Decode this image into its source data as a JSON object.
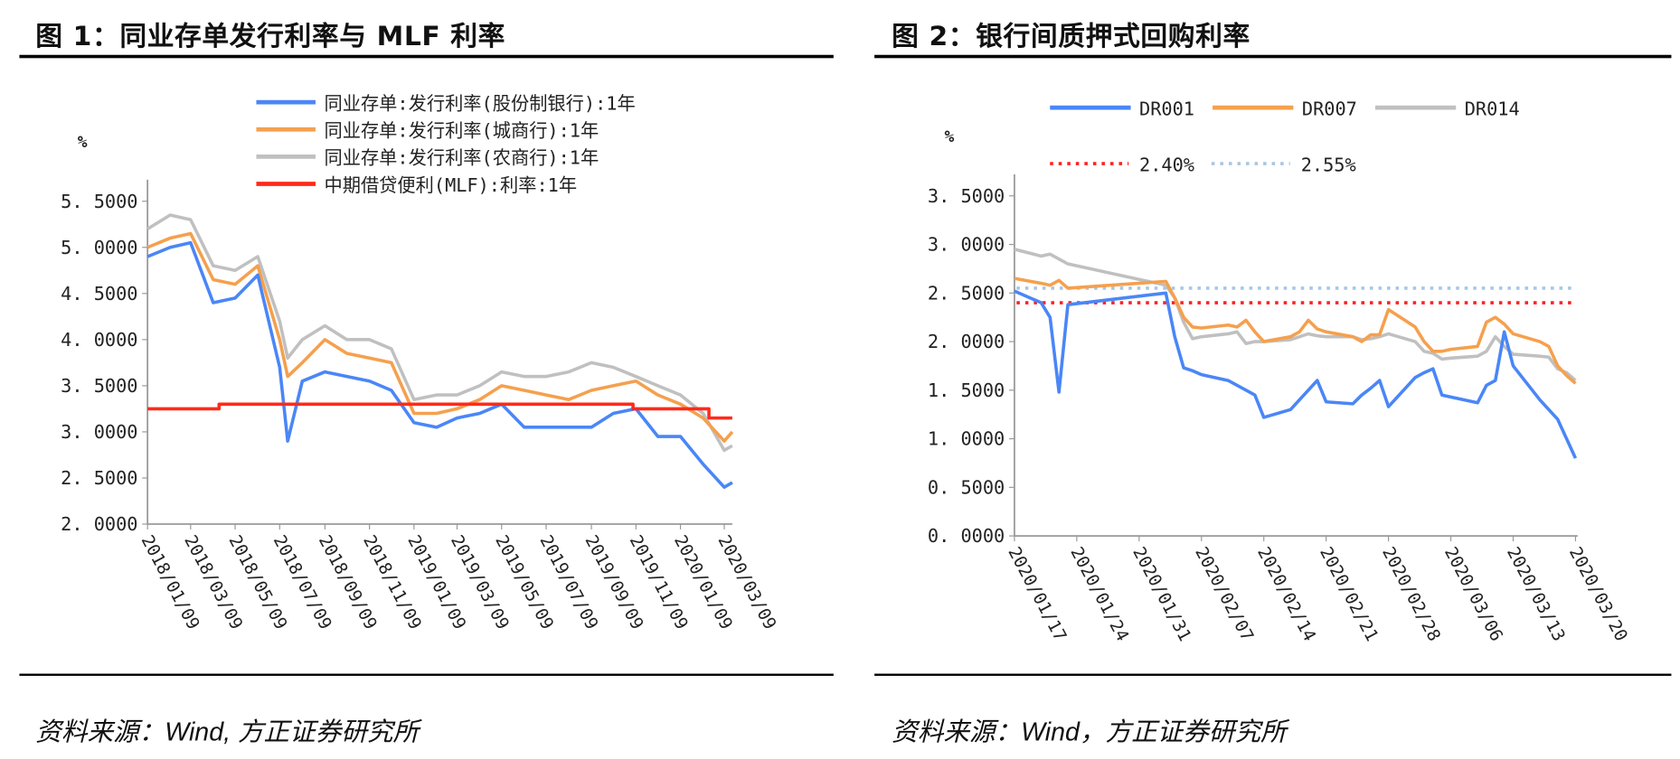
{
  "panels": {
    "left": {
      "title": "图 1：同业存单发行利率与 MLF 利率",
      "source": "资料来源：Wind, 方正证券研究所"
    },
    "right": {
      "title": "图 2：银行间质押式回购利率",
      "source": "资料来源：Wind，方正证券研究所"
    }
  },
  "chart_data": [
    {
      "type": "line",
      "ylabel": "%",
      "ylim": [
        2.0,
        5.5
      ],
      "yticks": [
        "5.5000",
        "5.0000",
        "4.5000",
        "4.0000",
        "3.5000",
        "3.0000",
        "2.5000",
        "2.0000"
      ],
      "xticks": [
        "2018/01/09",
        "2018/03/09",
        "2018/05/09",
        "2018/07/09",
        "2018/09/09",
        "2018/11/09",
        "2019/01/09",
        "2019/03/09",
        "2019/05/09",
        "2019/07/09",
        "2019/09/09",
        "2019/11/09",
        "2020/01/09",
        "2020/03/09"
      ],
      "grid": false,
      "legend": "top",
      "x": [
        "2018-01-09",
        "2018-02-09",
        "2018-03-09",
        "2018-04-09",
        "2018-05-09",
        "2018-06-09",
        "2018-07-09",
        "2018-07-20",
        "2018-08-09",
        "2018-09-09",
        "2018-10-09",
        "2018-11-09",
        "2018-12-09",
        "2019-01-09",
        "2019-02-09",
        "2019-03-09",
        "2019-04-09",
        "2019-05-09",
        "2019-06-09",
        "2019-07-09",
        "2019-08-09",
        "2019-09-09",
        "2019-10-09",
        "2019-11-09",
        "2019-12-09",
        "2020-01-09",
        "2020-02-09",
        "2020-03-09",
        "2020-03-20"
      ],
      "series": [
        {
          "name": "同业存单:发行利率(农商行):1年",
          "color": "#c0c0c0",
          "values": [
            5.2,
            5.35,
            5.3,
            4.8,
            4.75,
            4.9,
            4.2,
            3.8,
            4.0,
            4.15,
            4.0,
            4.0,
            3.9,
            3.35,
            3.4,
            3.4,
            3.5,
            3.65,
            3.6,
            3.6,
            3.65,
            3.75,
            3.7,
            3.6,
            3.5,
            3.4,
            3.2,
            2.8,
            2.85
          ]
        },
        {
          "name": "同业存单:发行利率(城商行):1年",
          "color": "#f5a04e",
          "values": [
            5.0,
            5.1,
            5.15,
            4.65,
            4.6,
            4.8,
            4.0,
            3.6,
            3.75,
            4.0,
            3.85,
            3.8,
            3.75,
            3.2,
            3.2,
            3.25,
            3.35,
            3.5,
            3.45,
            3.4,
            3.35,
            3.45,
            3.5,
            3.55,
            3.4,
            3.3,
            3.15,
            2.9,
            3.0
          ]
        },
        {
          "name": "同业存单:发行利率(股份制银行):1年",
          "color": "#4a86f7",
          "values": [
            4.9,
            5.0,
            5.05,
            4.4,
            4.45,
            4.7,
            3.7,
            2.9,
            3.55,
            3.65,
            3.6,
            3.55,
            3.45,
            3.1,
            3.05,
            3.15,
            3.2,
            3.3,
            3.05,
            3.05,
            3.05,
            3.05,
            3.2,
            3.25,
            2.95,
            2.95,
            2.65,
            2.4,
            2.45
          ]
        },
        {
          "name": "中期借贷便利(MLF):利率:1年",
          "color": "#ff2a1a",
          "step": true,
          "points": [
            [
              "2018-01-09",
              3.25
            ],
            [
              "2018-04-17",
              3.3
            ],
            [
              "2019-11-05",
              3.25
            ],
            [
              "2020-02-17",
              3.15
            ],
            [
              "2020-03-20",
              3.15
            ]
          ]
        }
      ],
      "legend_order": [
        2,
        1,
        0,
        3
      ]
    },
    {
      "type": "line",
      "ylabel": "%",
      "ylim": [
        0,
        3.5
      ],
      "yticks": [
        "3.5000",
        "3.0000",
        "2.5000",
        "2.0000",
        "1.5000",
        "1.0000",
        "0.5000",
        "0.0000"
      ],
      "xticks": [
        "2020/01/17",
        "2020/01/24",
        "2020/01/31",
        "2020/02/07",
        "2020/02/14",
        "2020/02/21",
        "2020/02/28",
        "2020/03/06",
        "2020/03/13",
        "2020/03/20"
      ],
      "grid": false,
      "legend": "top",
      "x": [
        "2020-01-17",
        "2020-01-20",
        "2020-01-21",
        "2020-01-22",
        "2020-01-23",
        "2020-02-03",
        "2020-02-04",
        "2020-02-05",
        "2020-02-06",
        "2020-02-07",
        "2020-02-10",
        "2020-02-11",
        "2020-02-12",
        "2020-02-13",
        "2020-02-14",
        "2020-02-17",
        "2020-02-18",
        "2020-02-19",
        "2020-02-20",
        "2020-02-21",
        "2020-02-24",
        "2020-02-25",
        "2020-02-26",
        "2020-02-27",
        "2020-02-28",
        "2020-03-02",
        "2020-03-03",
        "2020-03-04",
        "2020-03-05",
        "2020-03-06",
        "2020-03-09",
        "2020-03-10",
        "2020-03-11",
        "2020-03-12",
        "2020-03-13",
        "2020-03-16",
        "2020-03-17",
        "2020-03-18",
        "2020-03-19",
        "2020-03-20"
      ],
      "series": [
        {
          "name": "DR014",
          "color": "#c0c0c0",
          "values": [
            2.95,
            2.88,
            2.9,
            2.85,
            2.8,
            2.58,
            2.45,
            2.2,
            2.03,
            2.05,
            2.08,
            2.1,
            1.98,
            2.0,
            2.0,
            2.02,
            2.05,
            2.08,
            2.06,
            2.05,
            2.05,
            2.02,
            2.03,
            2.05,
            2.08,
            2.0,
            1.9,
            1.88,
            1.82,
            1.83,
            1.85,
            1.9,
            2.05,
            1.95,
            1.87,
            1.85,
            1.84,
            1.72,
            1.68,
            1.6
          ]
        },
        {
          "name": "DR007",
          "color": "#f5a04e",
          "values": [
            2.65,
            2.6,
            2.58,
            2.63,
            2.55,
            2.62,
            2.45,
            2.25,
            2.15,
            2.14,
            2.17,
            2.15,
            2.22,
            2.1,
            2.0,
            2.05,
            2.1,
            2.22,
            2.13,
            2.1,
            2.05,
            2.0,
            2.07,
            2.07,
            2.33,
            2.15,
            2.0,
            1.9,
            1.9,
            1.92,
            1.95,
            2.2,
            2.25,
            2.18,
            2.08,
            2.0,
            1.95,
            1.75,
            1.65,
            1.57
          ]
        },
        {
          "name": "DR001",
          "color": "#4a86f7",
          "values": [
            2.52,
            2.4,
            2.25,
            1.48,
            2.38,
            2.5,
            2.05,
            1.73,
            1.7,
            1.66,
            1.6,
            1.55,
            1.5,
            1.45,
            1.22,
            1.3,
            1.4,
            1.5,
            1.6,
            1.38,
            1.36,
            1.45,
            1.52,
            1.6,
            1.33,
            1.63,
            1.68,
            1.72,
            1.45,
            1.43,
            1.37,
            1.55,
            1.6,
            2.1,
            1.75,
            1.4,
            1.3,
            1.2,
            1.0,
            0.8
          ]
        }
      ],
      "legend_order": [
        2,
        1,
        0
      ],
      "reference_lines": [
        {
          "name": "2.40%",
          "value": 2.4,
          "color": "#ff2020",
          "style": "dotted"
        },
        {
          "name": "2.55%",
          "value": 2.55,
          "color": "#a9c6e0",
          "style": "dotted"
        }
      ]
    }
  ]
}
